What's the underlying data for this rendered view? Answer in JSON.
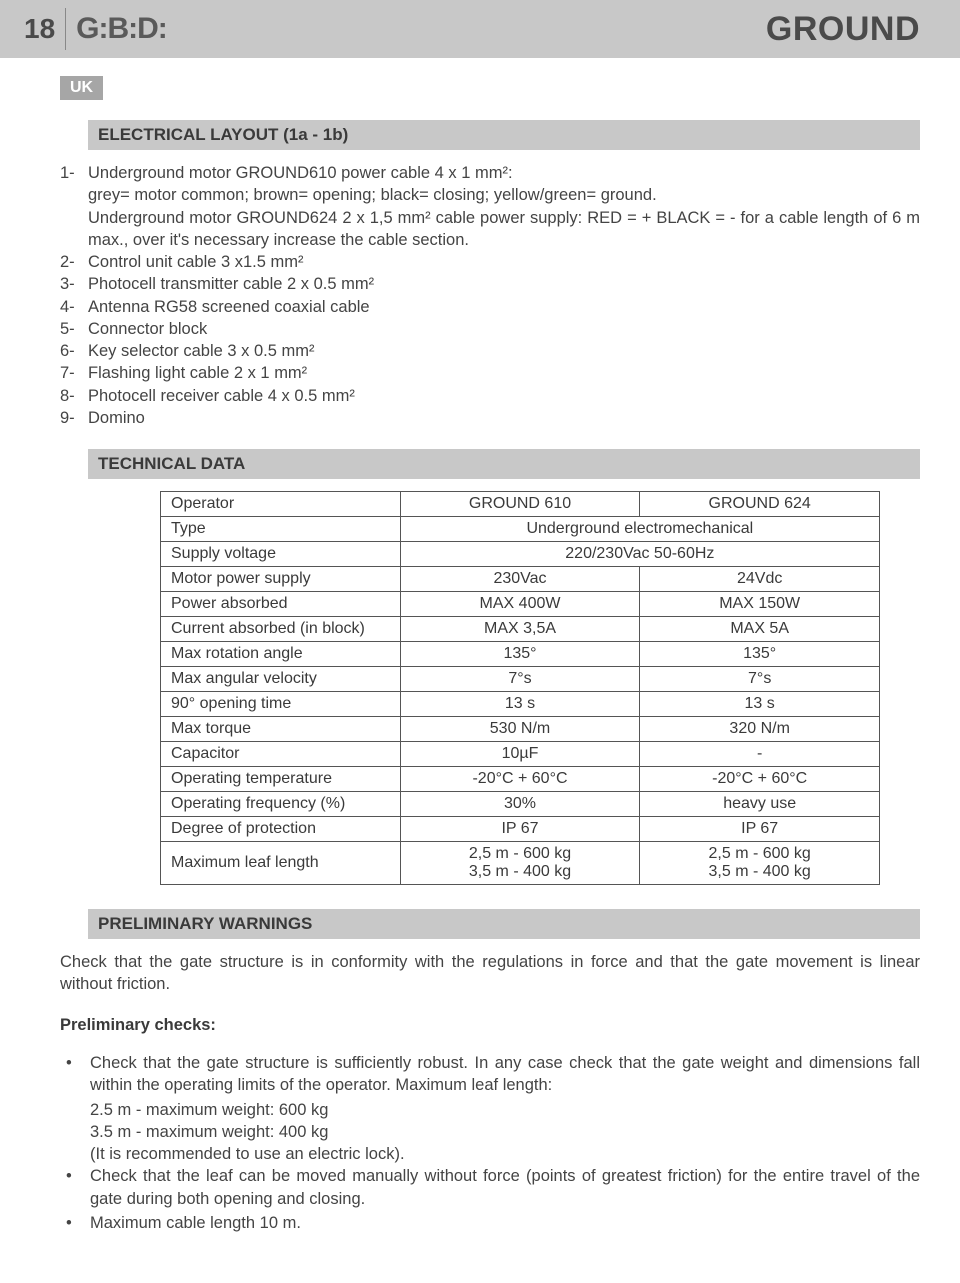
{
  "header": {
    "page_number": "18",
    "logo_text": "G:B:D:",
    "title": "GROUND"
  },
  "lang_badge": "UK",
  "sections": {
    "electrical": {
      "heading": "ELECTRICAL LAYOUT (1a - 1b)",
      "items": [
        {
          "n": "1-",
          "text": "Underground motor GROUND610 power cable 4 x 1 mm²:",
          "extra": [
            "grey= motor common; brown= opening; black= closing; yellow/green= ground.",
            "Underground motor GROUND624 2 x 1,5 mm² cable power supply:  RED  =   +   BLACK  =  -  for a cable length of 6 m max., over it's necessary increase the cable section."
          ]
        },
        {
          "n": "2-",
          "text": "Control unit cable 3 x1.5 mm²",
          "extra": []
        },
        {
          "n": "3-",
          "text": "Photocell transmitter cable 2 x 0.5 mm²",
          "extra": []
        },
        {
          "n": "4-",
          "text": "Antenna RG58 screened coaxial cable",
          "extra": []
        },
        {
          "n": "5-",
          "text": "Connector block",
          "extra": []
        },
        {
          "n": "6-",
          "text": "Key selector cable 3 x 0.5 mm²",
          "extra": []
        },
        {
          "n": "7-",
          "text": "Flashing light cable 2 x 1 mm²",
          "extra": []
        },
        {
          "n": "8-",
          "text": "Photocell receiver cable 4 x 0.5 mm²",
          "extra": []
        },
        {
          "n": "9-",
          "text": "Domino",
          "extra": []
        }
      ]
    },
    "technical": {
      "heading": "TECHNICAL DATA",
      "table": {
        "type": "table",
        "border_color": "#555555",
        "background_color": "#ffffff",
        "font_size": 16,
        "rows": [
          {
            "label": "Operator",
            "v1": "GROUND 610",
            "v2": "GROUND 624",
            "span": false
          },
          {
            "label": "Type",
            "v1": "Underground electromechanical",
            "span": true
          },
          {
            "label": "Supply voltage",
            "v1": "220/230Vac 50-60Hz",
            "span": true
          },
          {
            "label": "Motor power supply",
            "v1": "230Vac",
            "v2": "24Vdc",
            "span": false
          },
          {
            "label": "Power absorbed",
            "v1": "MAX 400W",
            "v2": "MAX 150W",
            "span": false
          },
          {
            "label": "Current absorbed (in block)",
            "v1": "MAX 3,5A",
            "v2": "MAX 5A",
            "span": false
          },
          {
            "label": "Max rotation angle",
            "v1": "135°",
            "v2": "135°",
            "span": false
          },
          {
            "label": "Max angular velocity",
            "v1": "7°s",
            "v2": "7°s",
            "span": false
          },
          {
            "label": "90° opening time",
            "v1": "13 s",
            "v2": "13 s",
            "span": false
          },
          {
            "label": "Max torque",
            "v1": "530 N/m",
            "v2": "320 N/m",
            "span": false
          },
          {
            "label": "Capacitor",
            "v1": "10µF",
            "v2": "-",
            "span": false
          },
          {
            "label": "Operating temperature",
            "v1": "-20°C + 60°C",
            "v2": "-20°C + 60°C",
            "span": false
          },
          {
            "label": "Operating frequency (%)",
            "v1": "30%",
            "v2": "heavy use",
            "span": false
          },
          {
            "label": "Degree of protection",
            "v1": "IP 67",
            "v2": "IP 67",
            "span": false
          },
          {
            "label": "Maximum leaf length",
            "v1_l1": "2,5 m - 600 kg",
            "v1_l2": "3,5 m - 400 kg",
            "v2_l1": "2,5 m - 600 kg",
            "v2_l2": "3,5 m - 400 kg",
            "span": false,
            "twoLine": true
          }
        ]
      }
    },
    "warnings": {
      "heading": "PRELIMINARY WARNINGS",
      "intro": "Check that the gate structure is in conformity with the regulations in force and that the gate movement is linear without friction.",
      "subhead": "Preliminary checks:",
      "bullets": [
        {
          "text": "Check that the gate structure is sufficiently robust. In any case check that the gate weight and dimensions fall within the operating limits of the operator.  Maximum leaf length:",
          "sub": [
            "2.5 m  -  maximum weight: 600 kg",
            "3.5 m  -  maximum weight: 400 kg",
            "(It is recommended to use an electric lock)."
          ]
        },
        {
          "text": "Check that the leaf can be moved manually without force (points of greatest friction) for the entire travel of the gate during both opening and closing.",
          "sub": []
        },
        {
          "text": "Maximum cable length 10 m.",
          "sub": []
        }
      ]
    }
  },
  "colors": {
    "header_bg": "#c8c8c8",
    "section_bg": "#c8c8c8",
    "badge_bg": "#a6a6a6",
    "text": "#3a3a3a",
    "border": "#555555"
  }
}
